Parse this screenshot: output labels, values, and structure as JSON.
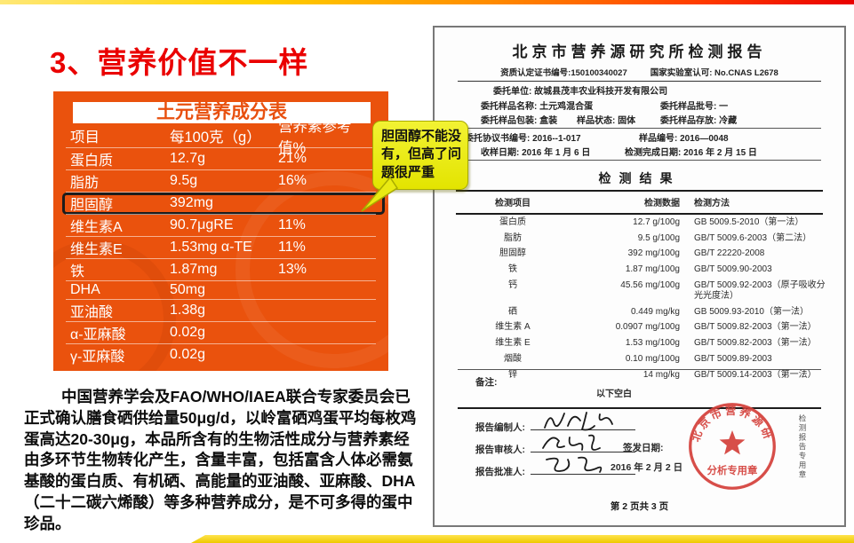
{
  "slide": {
    "title": "3、营养价值不一样"
  },
  "colors": {
    "panel_orange": "#ea520d",
    "title_red": "#ea0000",
    "callout_yellow": "#ecec1a",
    "stamp_red": "#d4403a",
    "bottom_bar_gold": "#f3d103"
  },
  "nutrition_table": {
    "title": "土元营养成分表",
    "headers": [
      "项目",
      "每100克（g）",
      "营养素参考值%"
    ],
    "rows": [
      {
        "name": "蛋白质",
        "value": "12.7g",
        "ref": "21%",
        "highlighted": false
      },
      {
        "name": "脂肪",
        "value": "9.5g",
        "ref": "16%",
        "highlighted": false
      },
      {
        "name": "胆固醇",
        "value": "392mg",
        "ref": "",
        "highlighted": true
      },
      {
        "name": "维生素A",
        "value": "90.7μgRE",
        "ref": "11%",
        "highlighted": false
      },
      {
        "name": "维生素E",
        "value": "1.53mg α-TE",
        "ref": "11%",
        "highlighted": false
      },
      {
        "name": "铁",
        "value": "1.87mg",
        "ref": "13%",
        "highlighted": false
      },
      {
        "name": "DHA",
        "value": "50mg",
        "ref": "",
        "highlighted": false
      },
      {
        "name": "亚油酸",
        "value": "1.38g",
        "ref": "",
        "highlighted": false
      },
      {
        "name": "α-亚麻酸",
        "value": "0.02g",
        "ref": "",
        "highlighted": false
      },
      {
        "name": "γ-亚麻酸",
        "value": "0.02g",
        "ref": "",
        "highlighted": false
      }
    ]
  },
  "callout": {
    "text": "胆固醇不能没有，但高了问题很严重"
  },
  "paragraph": "中国营养学会及FAO/WHO/IAEA联合专家委员会已正式确认膳食硒供给量50μg/d，以岭富硒鸡蛋平均每枚鸡蛋高达20-30μg，本品所含有的生物活性成分与营养素经由多环节生物转化产生，含量丰富，包括富含人体必需氨基酸的蛋白质、有机硒、高能量的亚油酸、亚麻酸、DHA（二十二碳六烯酸）等多种营养成分，是不可多得的蛋中珍品。",
  "report": {
    "title": "北京市营养源研究所检测报告",
    "cert_left": "资质认定证书编号:150100340027",
    "cert_right": "国家实验室认可: No.CNAS L2678",
    "header_fields": {
      "unit": "委托单位: 故城县茂丰农业科技开发有限公司",
      "sample_name": "委托样品名称: 土元鸡混合蛋",
      "batch": "委托样品批号: 一",
      "package": "委托样品包装: 盒装",
      "state": "样品状态: 固体",
      "storage": "委托样品存放: 冷藏",
      "agreement_no": "委托协议书编号: 2016--1-017",
      "sample_no": "样品编号: 2016—0048",
      "receive_date": "收样日期: 2016 年 1 月 6 日",
      "complete_date": "检测完成日期: 2016 年 2 月 15 日"
    },
    "result_title": "检测结果",
    "result_headers": [
      "检测项目",
      "检测数据",
      "检测方法"
    ],
    "results": [
      [
        "蛋白质",
        "12.7 g/100g",
        "GB 5009.5-2010（第一法）"
      ],
      [
        "脂肪",
        "9.5 g/100g",
        "GB/T 5009.6-2003（第二法）"
      ],
      [
        "胆固醇",
        "392 mg/100g",
        "GB/T 22220-2008"
      ],
      [
        "铁",
        "1.87 mg/100g",
        "GB/T 5009.90-2003"
      ],
      [
        "钙",
        "45.56 mg/100g",
        "GB/T 5009.92-2003（原子吸收分光光度法）"
      ],
      [
        "硒",
        "0.449 mg/kg",
        "GB 5009.93-2010（第一法）"
      ],
      [
        "维生素 A",
        "0.0907 mg/100g",
        "GB/T 5009.82-2003（第一法）"
      ],
      [
        "维生素 E",
        "1.53 mg/100g",
        "GB/T 5009.82-2003（第一法）"
      ],
      [
        "烟酸",
        "0.10 mg/100g",
        "GB/T 5009.89-2003"
      ],
      [
        "锌",
        "14 mg/kg",
        "GB/T 5009.14-2003（第一法）"
      ]
    ],
    "end_note": "以下空白",
    "remark_label": "备注:",
    "signers": {
      "maker": "报告编制人:",
      "reviewer": "报告审核人:",
      "approver": "报告批准人:"
    },
    "issue_date_label": "签发日期:",
    "issue_date": "2016 年 2 月 2 日",
    "stamp": {
      "ring_text": "北京市营养源研究所",
      "bottom_text": "分析专用章"
    },
    "side_vertical_text": "检测报告专用章",
    "page_footer": "第 2 页共 3 页"
  }
}
